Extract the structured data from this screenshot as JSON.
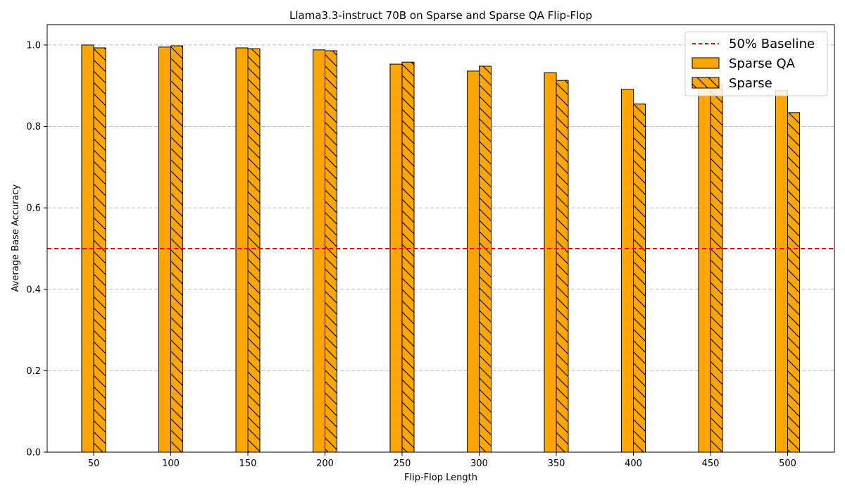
{
  "chart_data": {
    "type": "bar",
    "title": "Llama3.3-instruct 70B on Sparse and Sparse QA Flip-Flop",
    "xlabel": "Flip-Flop Length",
    "ylabel": "Average Base Accuracy",
    "categories": [
      "50",
      "100",
      "150",
      "200",
      "250",
      "300",
      "350",
      "400",
      "450",
      "500"
    ],
    "ylim": [
      0,
      1.05
    ],
    "yticks": [
      "0.0",
      "0.2",
      "0.4",
      "0.6",
      "0.8",
      "1.0"
    ],
    "grid": "y-dashed",
    "legend_position": "top-right",
    "series": [
      {
        "name": "Sparse QA",
        "color": "#ffa500",
        "hatch": "none",
        "values": [
          1.0,
          0.995,
          0.993,
          0.988,
          0.953,
          0.936,
          0.932,
          0.891,
          0.9,
          0.888
        ]
      },
      {
        "name": "Sparse",
        "color": "#ffa500",
        "hatch": "backslash",
        "values": [
          0.993,
          0.998,
          0.991,
          0.986,
          0.958,
          0.948,
          0.913,
          0.855,
          0.903,
          0.834
        ]
      }
    ],
    "baseline": {
      "name": "50% Baseline",
      "value": 0.5,
      "color": "#ff0000",
      "style": "dashed"
    }
  }
}
